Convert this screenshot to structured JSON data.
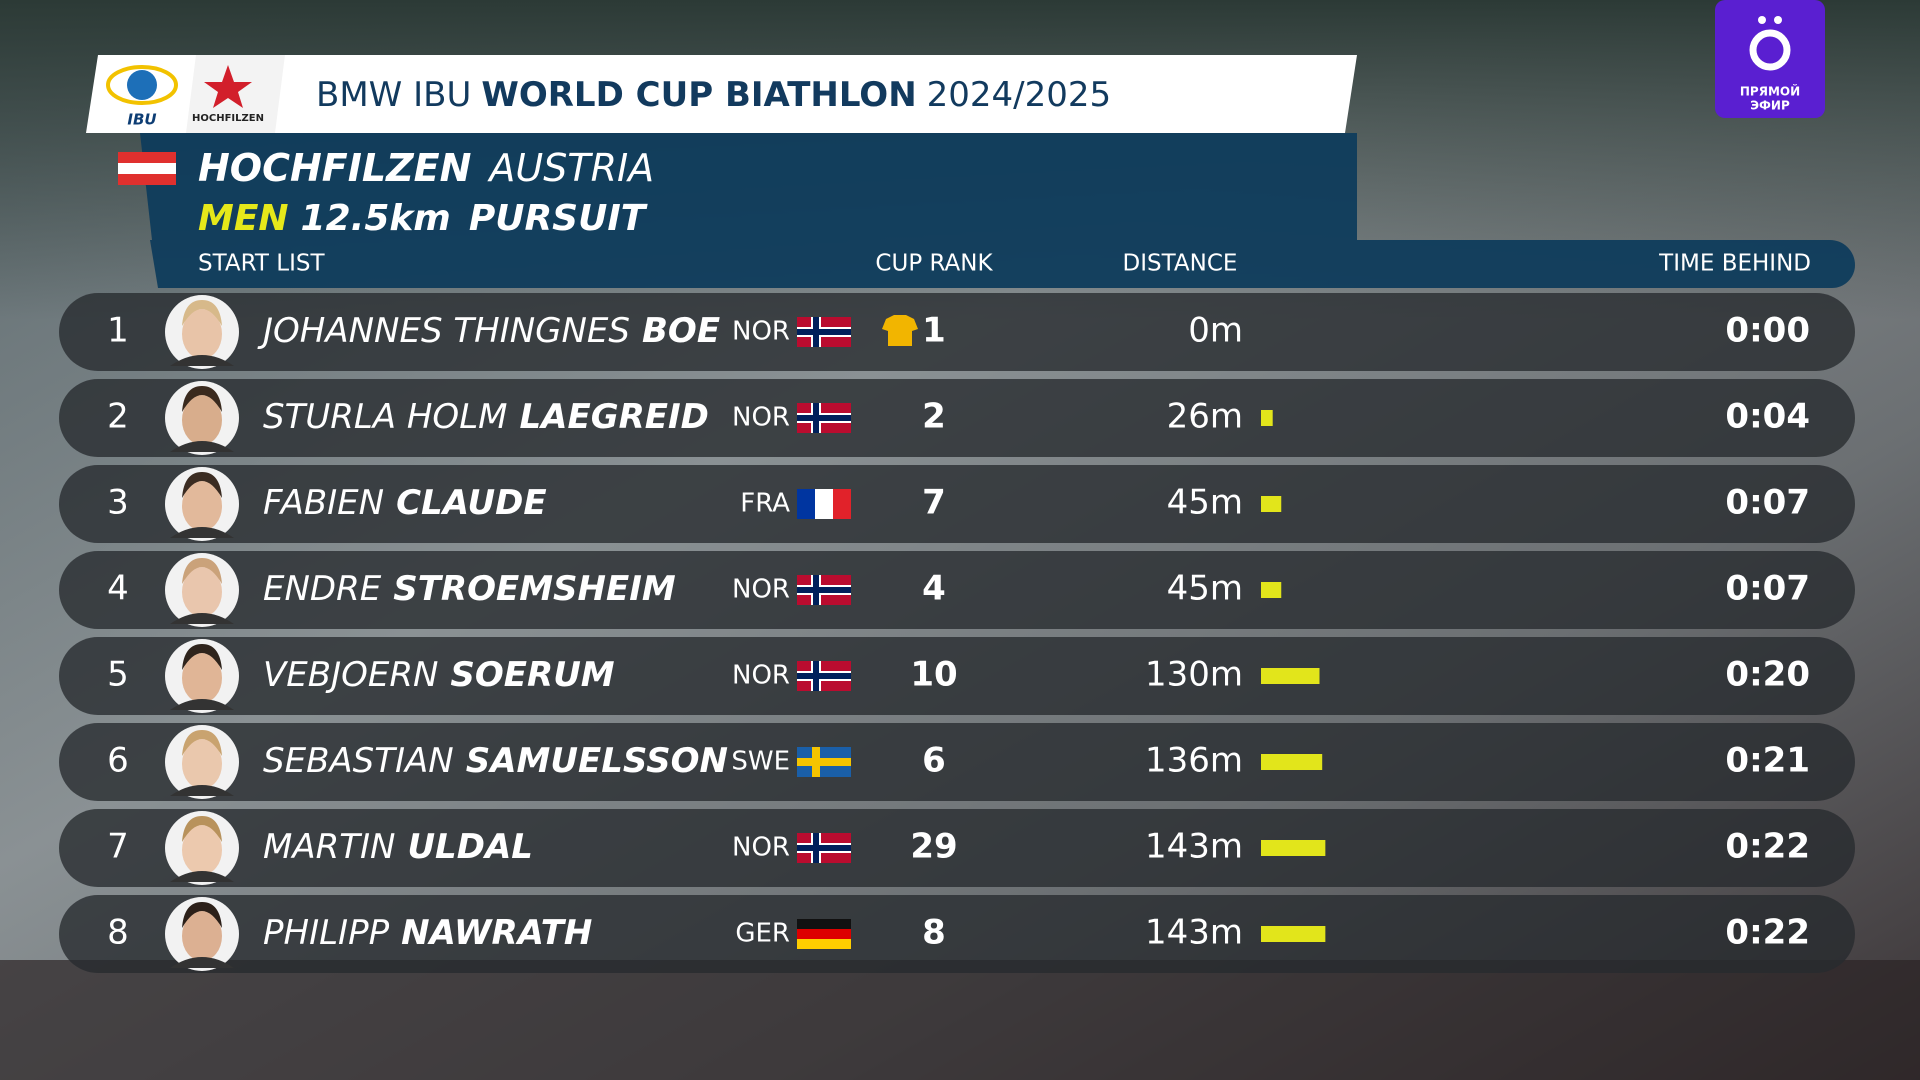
{
  "header": {
    "brand": "BMW IBU",
    "title": "WORLD CUP BIATHLON",
    "season": "2024/2025",
    "logo_ibu": "IBU",
    "logo_venue": "HOCHFILZEN"
  },
  "channel": {
    "line1": "ПРЯМОЙ",
    "line2": "ЭФИР"
  },
  "event": {
    "venue": "HOCHFILZEN",
    "country": "AUSTRIA",
    "gender": "MEN",
    "distance": "12.5km",
    "format": "PURSUIT"
  },
  "columns": {
    "list": "START LIST",
    "cup_rank": "CUP RANK",
    "distance": "DISTANCE",
    "time": "TIME BEHIND"
  },
  "rows": [
    {
      "start": 1,
      "first": "JOHANNES  THINGNES",
      "last": "BOE",
      "nation": "NOR",
      "cup_rank": 1,
      "distance": {
        "value": 0,
        "label": "0m"
      },
      "time_behind": "0:00"
    },
    {
      "start": 2,
      "first": "STURLA  HOLM",
      "last": "LAEGREID",
      "nation": "NOR",
      "cup_rank": 2,
      "distance": {
        "value": 26,
        "label": "26m"
      },
      "time_behind": "0:04"
    },
    {
      "start": 3,
      "first": "FABIEN",
      "last": "CLAUDE",
      "nation": "FRA",
      "cup_rank": 7,
      "distance": {
        "value": 45,
        "label": "45m"
      },
      "time_behind": "0:07"
    },
    {
      "start": 4,
      "first": "ENDRE",
      "last": "STROEMSHEIM",
      "nation": "NOR",
      "cup_rank": 4,
      "distance": {
        "value": 45,
        "label": "45m"
      },
      "time_behind": "0:07"
    },
    {
      "start": 5,
      "first": "VEBJOERN",
      "last": "SOERUM",
      "nation": "NOR",
      "cup_rank": 10,
      "distance": {
        "value": 130,
        "label": "130m"
      },
      "time_behind": "0:20"
    },
    {
      "start": 6,
      "first": "SEBASTIAN",
      "last": "SAMUELSSON",
      "nation": "SWE",
      "cup_rank": 6,
      "distance": {
        "value": 136,
        "label": "136m"
      },
      "time_behind": "0:21"
    },
    {
      "start": 7,
      "first": "MARTIN",
      "last": "ULDAL",
      "nation": "NOR",
      "cup_rank": 29,
      "distance": {
        "value": 143,
        "label": "143m"
      },
      "time_behind": "0:22"
    },
    {
      "start": 8,
      "first": "PHILIPP",
      "last": "NAWRATH",
      "nation": "GER",
      "cup_rank": 8,
      "distance": {
        "value": 143,
        "label": "143m"
      },
      "time_behind": "0:22"
    }
  ]
}
